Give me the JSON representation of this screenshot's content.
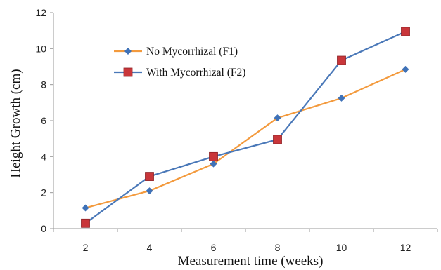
{
  "chart_data": {
    "type": "line",
    "title": "",
    "xlabel": "Measurement  time  (weeks)",
    "ylabel": "Height  Growth  (cm)",
    "x": [
      2,
      4,
      6,
      8,
      10,
      12
    ],
    "x_ticks": [
      "2",
      "4",
      "6",
      "8",
      "10",
      "12"
    ],
    "y_ticks": [
      "0",
      "2",
      "4",
      "6",
      "8",
      "10",
      "12"
    ],
    "ylim": [
      0,
      12
    ],
    "grid": false,
    "legend_position": "top-left",
    "series": [
      {
        "name": "No Mycorrhizal (F1)",
        "values": [
          1.15,
          2.1,
          3.6,
          6.15,
          7.25,
          8.85
        ],
        "line_color": "#F39A3D",
        "marker_color": "#3F72B8",
        "marker": "diamond"
      },
      {
        "name": "With Mycorrhizal (F2)",
        "values": [
          0.3,
          2.9,
          4.0,
          4.95,
          9.35,
          10.95
        ],
        "line_color": "#4A78B8",
        "marker_color": "#C9363A",
        "marker": "square"
      }
    ]
  }
}
